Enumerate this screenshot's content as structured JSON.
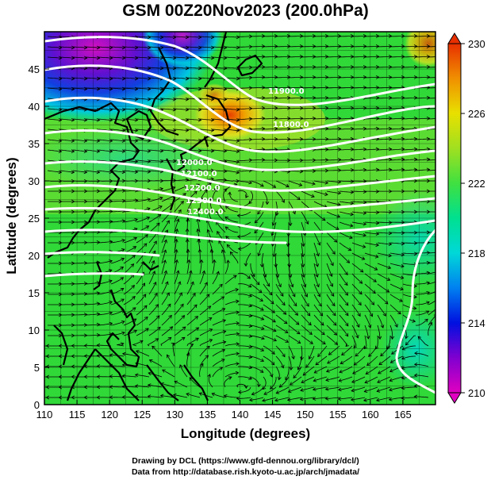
{
  "title": "GSM 00Z20Nov2023 (200.0hPa)",
  "xlabel": "Longitude (degrees)",
  "ylabel": "Latitude  (degrees)",
  "credit_line1": "Drawing by DCL (https://www.gfd-dennou.org/library/dcl/)",
  "credit_line2": "Data from http://database.rish.kyoto-u.ac.jp/arch/jmadata/",
  "colors": {
    "land_outline": "#000000",
    "contour": "#ffffff",
    "streamline": "#000000"
  },
  "chart_data": {
    "type": "heatmap",
    "xlim": [
      110,
      170
    ],
    "ylim": [
      0,
      50
    ],
    "x_ticks": [
      110,
      115,
      120,
      125,
      130,
      135,
      140,
      145,
      150,
      155,
      160,
      165
    ],
    "y_ticks": [
      0,
      5,
      10,
      15,
      20,
      25,
      30,
      35,
      40,
      45
    ],
    "grid": true,
    "colorbar": {
      "range": [
        210,
        230
      ],
      "ticks": [
        210,
        214,
        218,
        222,
        226,
        230
      ],
      "position": "right"
    },
    "contour_labels": [
      "12000.0",
      "12100.0",
      "12200.0",
      "12300.0",
      "12400.0",
      "11900.0",
      "11800.0"
    ]
  }
}
